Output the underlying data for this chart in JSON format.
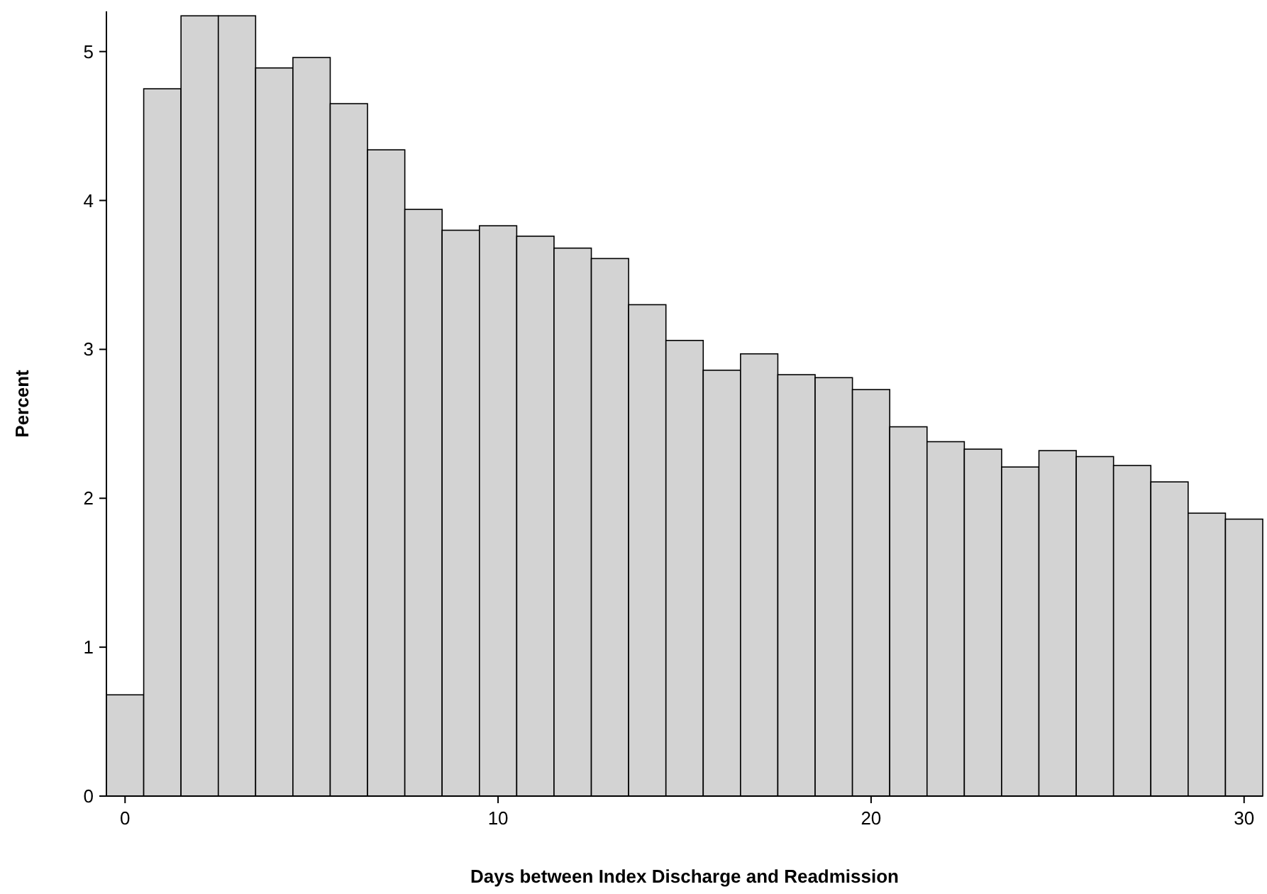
{
  "chart_data": {
    "type": "histogram",
    "xlabel": "Days between Index Discharge and Readmission",
    "ylabel": "Percent",
    "bins": [
      -0.5,
      0.5,
      1.5,
      2.5,
      3.5,
      4.5,
      5.5,
      6.5,
      7.5,
      8.5,
      9.5,
      10.5,
      11.5,
      12.5,
      13.5,
      14.5,
      15.5,
      16.5,
      17.5,
      18.5,
      19.5,
      20.5,
      21.5,
      22.5,
      23.5,
      24.5,
      25.5,
      26.5,
      27.5,
      28.5,
      29.5,
      30.5
    ],
    "values": [
      0.68,
      4.75,
      5.24,
      5.24,
      4.89,
      4.96,
      4.65,
      4.34,
      3.94,
      3.8,
      3.83,
      3.76,
      3.68,
      3.61,
      3.3,
      3.06,
      2.86,
      2.97,
      2.83,
      2.81,
      2.73,
      2.48,
      2.38,
      2.33,
      2.21,
      2.32,
      2.28,
      2.22,
      2.11,
      1.9,
      1.86
    ],
    "color": "#d3d3d3",
    "xlim": [
      -0.5,
      30.5
    ],
    "ylim": [
      0,
      5.27
    ],
    "xticks": [
      0,
      10,
      20,
      30
    ],
    "yticks": [
      0,
      1,
      2,
      3,
      4,
      5
    ],
    "grid": false
  }
}
